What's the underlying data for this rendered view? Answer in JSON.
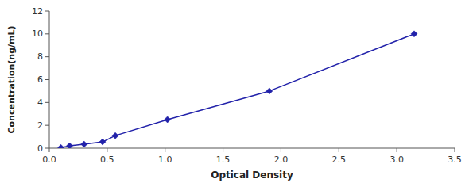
{
  "chart_data": {
    "type": "line",
    "x": [
      0.1,
      0.175,
      0.3,
      0.46,
      0.57,
      1.02,
      1.9,
      3.15
    ],
    "values": [
      0.05,
      0.2,
      0.35,
      0.55,
      1.1,
      2.5,
      5.0,
      10.0
    ],
    "color": "#2222aa",
    "marker": "diamond",
    "xlabel": "Optical Density",
    "ylabel": "Concentration(ng/mL)",
    "xlim": [
      0,
      3.5
    ],
    "ylim": [
      0,
      12
    ],
    "xticks": [
      {
        "value": 0,
        "label": "0.0"
      },
      0.5,
      {
        "value": 1,
        "label": "1.0"
      },
      1.5,
      {
        "value": 2,
        "label": "2.0"
      },
      2.5,
      {
        "value": 3,
        "label": "3.0"
      },
      3.5
    ],
    "yticks": [
      0,
      2,
      4,
      6,
      8,
      10,
      12
    ],
    "grid": false
  }
}
